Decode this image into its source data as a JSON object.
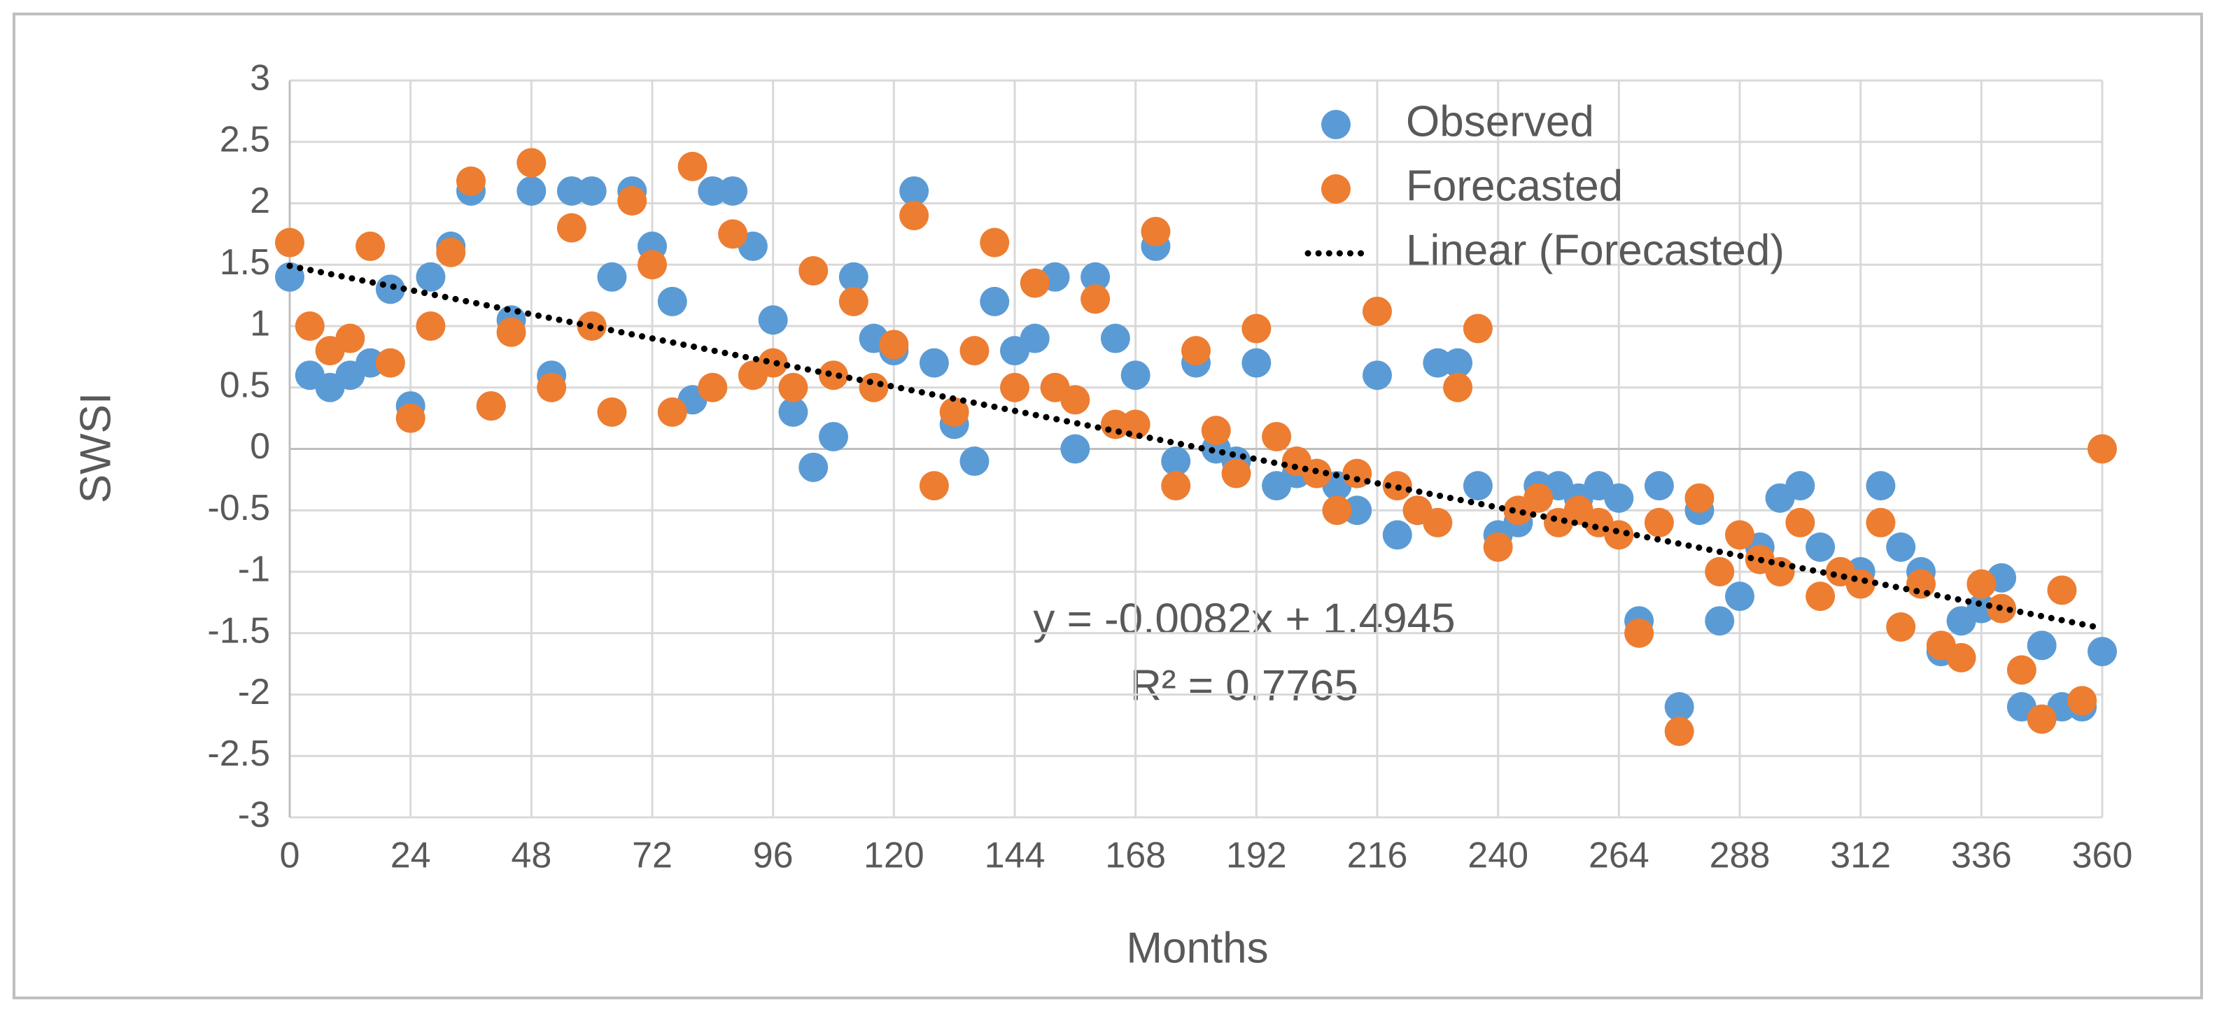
{
  "chart_data": {
    "type": "scatter",
    "xlabel": "Months",
    "ylabel": "SWSI",
    "annotations": [
      "y = -0.0082x + 1.4945",
      "R² = 0.7765"
    ],
    "xlim": [
      0,
      360
    ],
    "xticks": [
      0,
      24,
      48,
      72,
      96,
      120,
      144,
      168,
      192,
      216,
      240,
      264,
      288,
      312,
      336,
      360
    ],
    "ylim": [
      -3,
      3
    ],
    "yticks": [
      -3,
      -2.5,
      -2,
      -1.5,
      -1,
      -0.5,
      0,
      0.5,
      1,
      1.5,
      2,
      2.5,
      3
    ],
    "grid": true,
    "legend": "upper right",
    "series": [
      {
        "name": "Observed",
        "color": "#5b9bd5",
        "x": [
          0,
          4,
          8,
          12,
          16,
          20,
          24,
          28,
          32,
          36,
          40,
          44,
          48,
          52,
          56,
          60,
          64,
          68,
          72,
          76,
          80,
          84,
          88,
          92,
          96,
          100,
          104,
          108,
          112,
          116,
          120,
          124,
          128,
          132,
          136,
          140,
          144,
          148,
          152,
          156,
          160,
          164,
          168,
          172,
          176,
          180,
          184,
          188,
          192,
          196,
          200,
          204,
          208,
          212,
          216,
          220,
          224,
          228,
          232,
          236,
          240,
          244,
          248,
          252,
          256,
          260,
          264,
          268,
          272,
          276,
          280,
          284,
          288,
          292,
          296,
          300,
          304,
          308,
          312,
          316,
          320,
          324,
          328,
          332,
          336,
          340,
          344,
          348,
          352,
          356,
          360
        ],
        "values": [
          1.4,
          0.6,
          0.5,
          0.6,
          0.7,
          1.3,
          0.35,
          1.4,
          1.65,
          2.1,
          0.35,
          1.05,
          2.1,
          0.6,
          2.1,
          2.1,
          1.4,
          2.1,
          1.65,
          1.2,
          0.4,
          2.1,
          2.1,
          1.65,
          1.05,
          0.3,
          -0.15,
          0.1,
          1.4,
          0.9,
          0.8,
          2.1,
          0.7,
          0.2,
          -0.1,
          1.2,
          0.8,
          0.9,
          1.4,
          0.0,
          1.4,
          0.9,
          0.6,
          1.65,
          -0.1,
          0.7,
          0.0,
          -0.1,
          0.7,
          -0.3,
          -0.2,
          -0.2,
          -0.3,
          -0.5,
          0.6,
          -0.7,
          -0.5,
          0.7,
          0.7,
          -0.3,
          -0.7,
          -0.6,
          -0.3,
          -0.3,
          -0.4,
          -0.3,
          -0.4,
          -1.4,
          -0.3,
          -2.1,
          -0.5,
          -1.4,
          -1.2,
          -0.8,
          -0.4,
          -0.3,
          -0.8,
          -1.0,
          -1.0,
          -0.3,
          -0.8,
          -1.0,
          -1.65,
          -1.4,
          -1.3,
          -1.05,
          -2.1,
          -1.6,
          -2.1,
          -2.1,
          -1.65
        ]
      },
      {
        "name": "Forecasted",
        "color": "#ed7d31",
        "x": [
          0,
          4,
          8,
          12,
          16,
          20,
          24,
          28,
          32,
          36,
          40,
          44,
          48,
          52,
          56,
          60,
          64,
          68,
          72,
          76,
          80,
          84,
          88,
          92,
          96,
          100,
          104,
          108,
          112,
          116,
          120,
          124,
          128,
          132,
          136,
          140,
          144,
          148,
          152,
          156,
          160,
          164,
          168,
          172,
          176,
          180,
          184,
          188,
          192,
          196,
          200,
          204,
          208,
          212,
          216,
          220,
          224,
          228,
          232,
          236,
          240,
          244,
          248,
          252,
          256,
          260,
          264,
          268,
          272,
          276,
          280,
          284,
          288,
          292,
          296,
          300,
          304,
          308,
          312,
          316,
          320,
          324,
          328,
          332,
          336,
          340,
          344,
          348,
          352,
          356,
          360
        ],
        "values": [
          1.68,
          1.0,
          0.8,
          0.9,
          1.65,
          0.7,
          0.25,
          1.0,
          1.6,
          2.18,
          0.35,
          0.95,
          2.33,
          0.5,
          1.8,
          1.0,
          0.3,
          2.02,
          1.5,
          0.3,
          2.3,
          0.5,
          1.75,
          0.6,
          0.7,
          0.5,
          1.45,
          0.6,
          1.2,
          0.5,
          0.85,
          1.9,
          -0.3,
          0.3,
          0.8,
          1.68,
          0.5,
          1.35,
          0.5,
          0.4,
          1.22,
          0.2,
          0.2,
          1.77,
          -0.3,
          0.8,
          0.15,
          -0.2,
          0.98,
          0.1,
          -0.1,
          -0.2,
          -0.5,
          -0.2,
          1.12,
          -0.3,
          -0.5,
          -0.6,
          0.5,
          0.98,
          -0.8,
          -0.5,
          -0.4,
          -0.6,
          -0.5,
          -0.6,
          -0.7,
          -1.5,
          -0.6,
          -2.3,
          -0.4,
          -1.0,
          -0.7,
          -0.9,
          -1.0,
          -0.6,
          -1.2,
          -1.0,
          -1.1,
          -0.6,
          -1.45,
          -1.1,
          -1.6,
          -1.7,
          -1.1,
          -1.3,
          -1.8,
          -2.2,
          -1.15,
          -2.05,
          0.0
        ]
      },
      {
        "name": "Linear (Forecasted)",
        "color": "#000000",
        "line": "dotted",
        "x": [
          0,
          360
        ],
        "values": [
          1.49,
          -1.46
        ]
      }
    ]
  }
}
